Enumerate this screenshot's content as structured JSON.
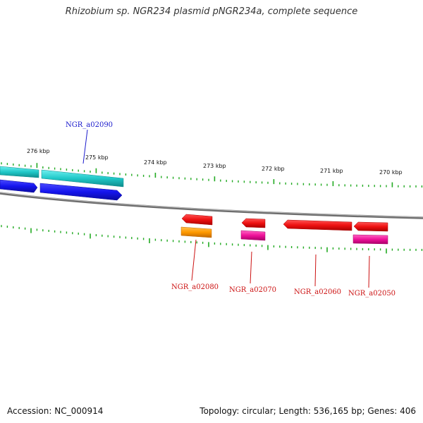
{
  "title": "Rhizobium sp. NGR234 plasmid pNGR234a, complete sequence",
  "footer": {
    "accession": "Accession: NC_000914",
    "topology": "Topology: circular; Length: 536,165 bp; Genes: 406"
  },
  "scale": {
    "labels": [
      "276 kbp",
      "275 kbp",
      "274 kbp",
      "273 kbp",
      "272 kbp",
      "271 kbp",
      "270 kbp"
    ]
  },
  "genes": [
    {
      "name": "NGR_a02090",
      "color": "#1a1acc"
    },
    {
      "name": "NGR_a02080",
      "color": "#cc1111"
    },
    {
      "name": "NGR_a02070",
      "color": "#cc1111"
    },
    {
      "name": "NGR_a02060",
      "color": "#cc1111"
    },
    {
      "name": "NGR_a02050",
      "color": "#cc1111"
    }
  ],
  "colors": {
    "cyan_track": "#22cccc",
    "blue_track": "#1a1aee",
    "red_feature": "#ee1111",
    "orange_feature": "#ff9900",
    "pink_feature": "#ee1199",
    "backbone": "#888888",
    "tick": "#22aa22"
  }
}
